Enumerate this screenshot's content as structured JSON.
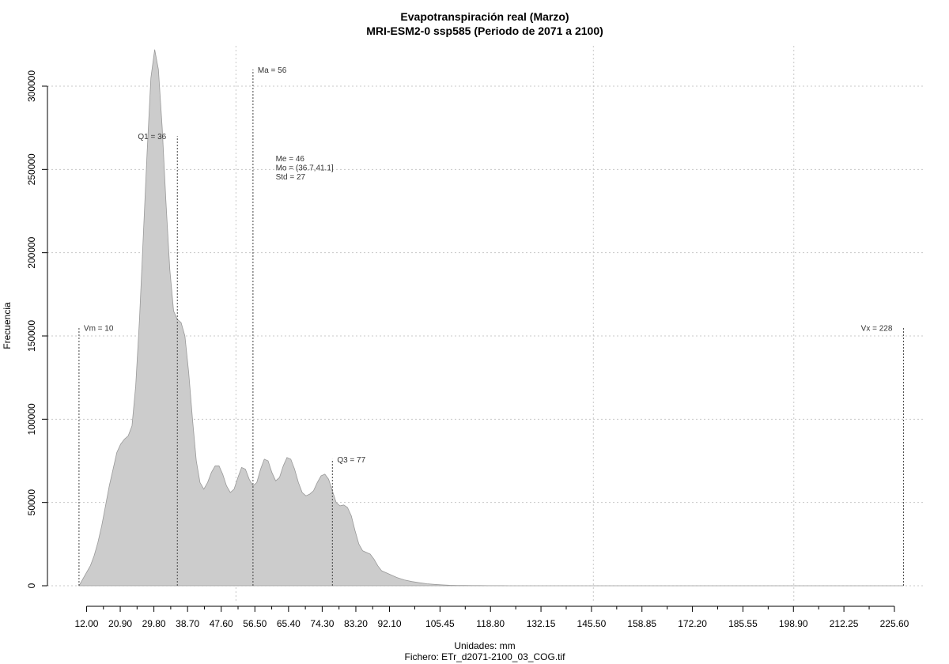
{
  "chart_data": {
    "type": "area",
    "title": "Evapotranspiración real (Marzo)",
    "subtitle": "MRI-ESM2-0 ssp585 (Periodo de 2071 a 2100)",
    "xlabel": "Unidades: mm",
    "caption": "Fichero: ETr_d2071-2100_03_COG.tif",
    "ylabel": "Frecuencia",
    "xlim": [
      5,
      230
    ],
    "ylim": [
      0,
      320000
    ],
    "grid": true,
    "x_ticks": [
      "12.00",
      "20.90",
      "29.80",
      "38.70",
      "47.60",
      "56.50",
      "65.40",
      "74.30",
      "83.20",
      "92.10",
      "105.45",
      "118.80",
      "132.15",
      "145.50",
      "158.85",
      "172.20",
      "185.55",
      "198.90",
      "212.25",
      "225.60"
    ],
    "x_tick_values": [
      12.0,
      20.9,
      29.8,
      38.7,
      47.6,
      56.5,
      65.4,
      74.3,
      83.2,
      92.1,
      105.45,
      118.8,
      132.15,
      145.5,
      158.85,
      172.2,
      185.55,
      198.9,
      212.25,
      225.6
    ],
    "x_minor_ticks": [
      16.45,
      25.35,
      34.25,
      43.15,
      52.05,
      60.95,
      69.85,
      78.75,
      87.65,
      98.775,
      112.125,
      125.475,
      138.825,
      152.175,
      165.525,
      178.875,
      192.225,
      205.575,
      218.925
    ],
    "x_grid": [
      51.5,
      146,
      199
    ],
    "y_ticks": [
      0,
      50000,
      100000,
      150000,
      200000,
      250000,
      300000
    ],
    "y_tick_labels": [
      "0",
      "50000",
      "100000",
      "150000",
      "200000",
      "250000",
      "300000"
    ],
    "series": [
      {
        "x": [
          10,
          11,
          12,
          13,
          14,
          15,
          16,
          17,
          18,
          19,
          20,
          21,
          22,
          23,
          24,
          25,
          26,
          27,
          28,
          29,
          30,
          31,
          32,
          33,
          34,
          35,
          36,
          37,
          38,
          39,
          40,
          41,
          42,
          43,
          44,
          45,
          46,
          47,
          48,
          49,
          50,
          51,
          52,
          53,
          54,
          55,
          56,
          57,
          58,
          59,
          60,
          61,
          62,
          63,
          64,
          65,
          66,
          67,
          68,
          69,
          70,
          71,
          72,
          73,
          74,
          75,
          76,
          77,
          78,
          79,
          80,
          81,
          82,
          83,
          84,
          85,
          86,
          87,
          88,
          89,
          90,
          92,
          94,
          96,
          98,
          100,
          102,
          104,
          106,
          108,
          110,
          112,
          114,
          116,
          118,
          120,
          122,
          124,
          126,
          128,
          130,
          132,
          134,
          136,
          140,
          145,
          150,
          160,
          180,
          200,
          228
        ],
        "y": [
          0,
          4000,
          8000,
          12000,
          18000,
          26000,
          36000,
          48000,
          60000,
          70000,
          80000,
          85000,
          88000,
          90000,
          96000,
          120000,
          160000,
          210000,
          260000,
          305000,
          322000,
          310000,
          275000,
          230000,
          190000,
          165000,
          160000,
          158000,
          150000,
          128000,
          100000,
          75000,
          62000,
          58000,
          62000,
          68000,
          72000,
          72000,
          67000,
          60000,
          56000,
          58000,
          65000,
          71000,
          70000,
          64000,
          60000,
          62000,
          70000,
          76000,
          75000,
          68000,
          63000,
          65000,
          72000,
          77000,
          76000,
          70000,
          62000,
          56000,
          54000,
          55000,
          57000,
          62000,
          66000,
          67000,
          64000,
          57000,
          50000,
          48000,
          48500,
          47000,
          42000,
          33000,
          25000,
          21000,
          20000,
          19000,
          16000,
          12000,
          9000,
          7000,
          5000,
          3500,
          2500,
          1800,
          1200,
          800,
          500,
          300,
          200,
          150,
          100,
          80,
          60,
          40,
          30,
          20,
          15,
          10,
          8,
          5,
          3,
          2,
          1,
          0,
          0,
          0,
          0,
          0,
          0
        ]
      }
    ],
    "markers": [
      {
        "label": "Vm = 10",
        "x": 10,
        "y_top": 155000,
        "label_side": "right"
      },
      {
        "label": "Q1 = 36",
        "x": 36,
        "y_top": 270000,
        "label_side": "left"
      },
      {
        "label": "Ma = 56",
        "x": 56,
        "y_top": 310000,
        "label_side": "right"
      },
      {
        "label": "Q3 = 77",
        "x": 77,
        "y_top": 76000,
        "label_side": "right"
      },
      {
        "label": "Vx = 228",
        "x": 228,
        "y_top": 155000,
        "label_side": "left"
      }
    ],
    "stats_text": [
      "Me = 46",
      "Mo = (36.7,41.1]",
      "Std = 27"
    ],
    "stats_anchor": {
      "x": 62,
      "y": 255000
    }
  }
}
